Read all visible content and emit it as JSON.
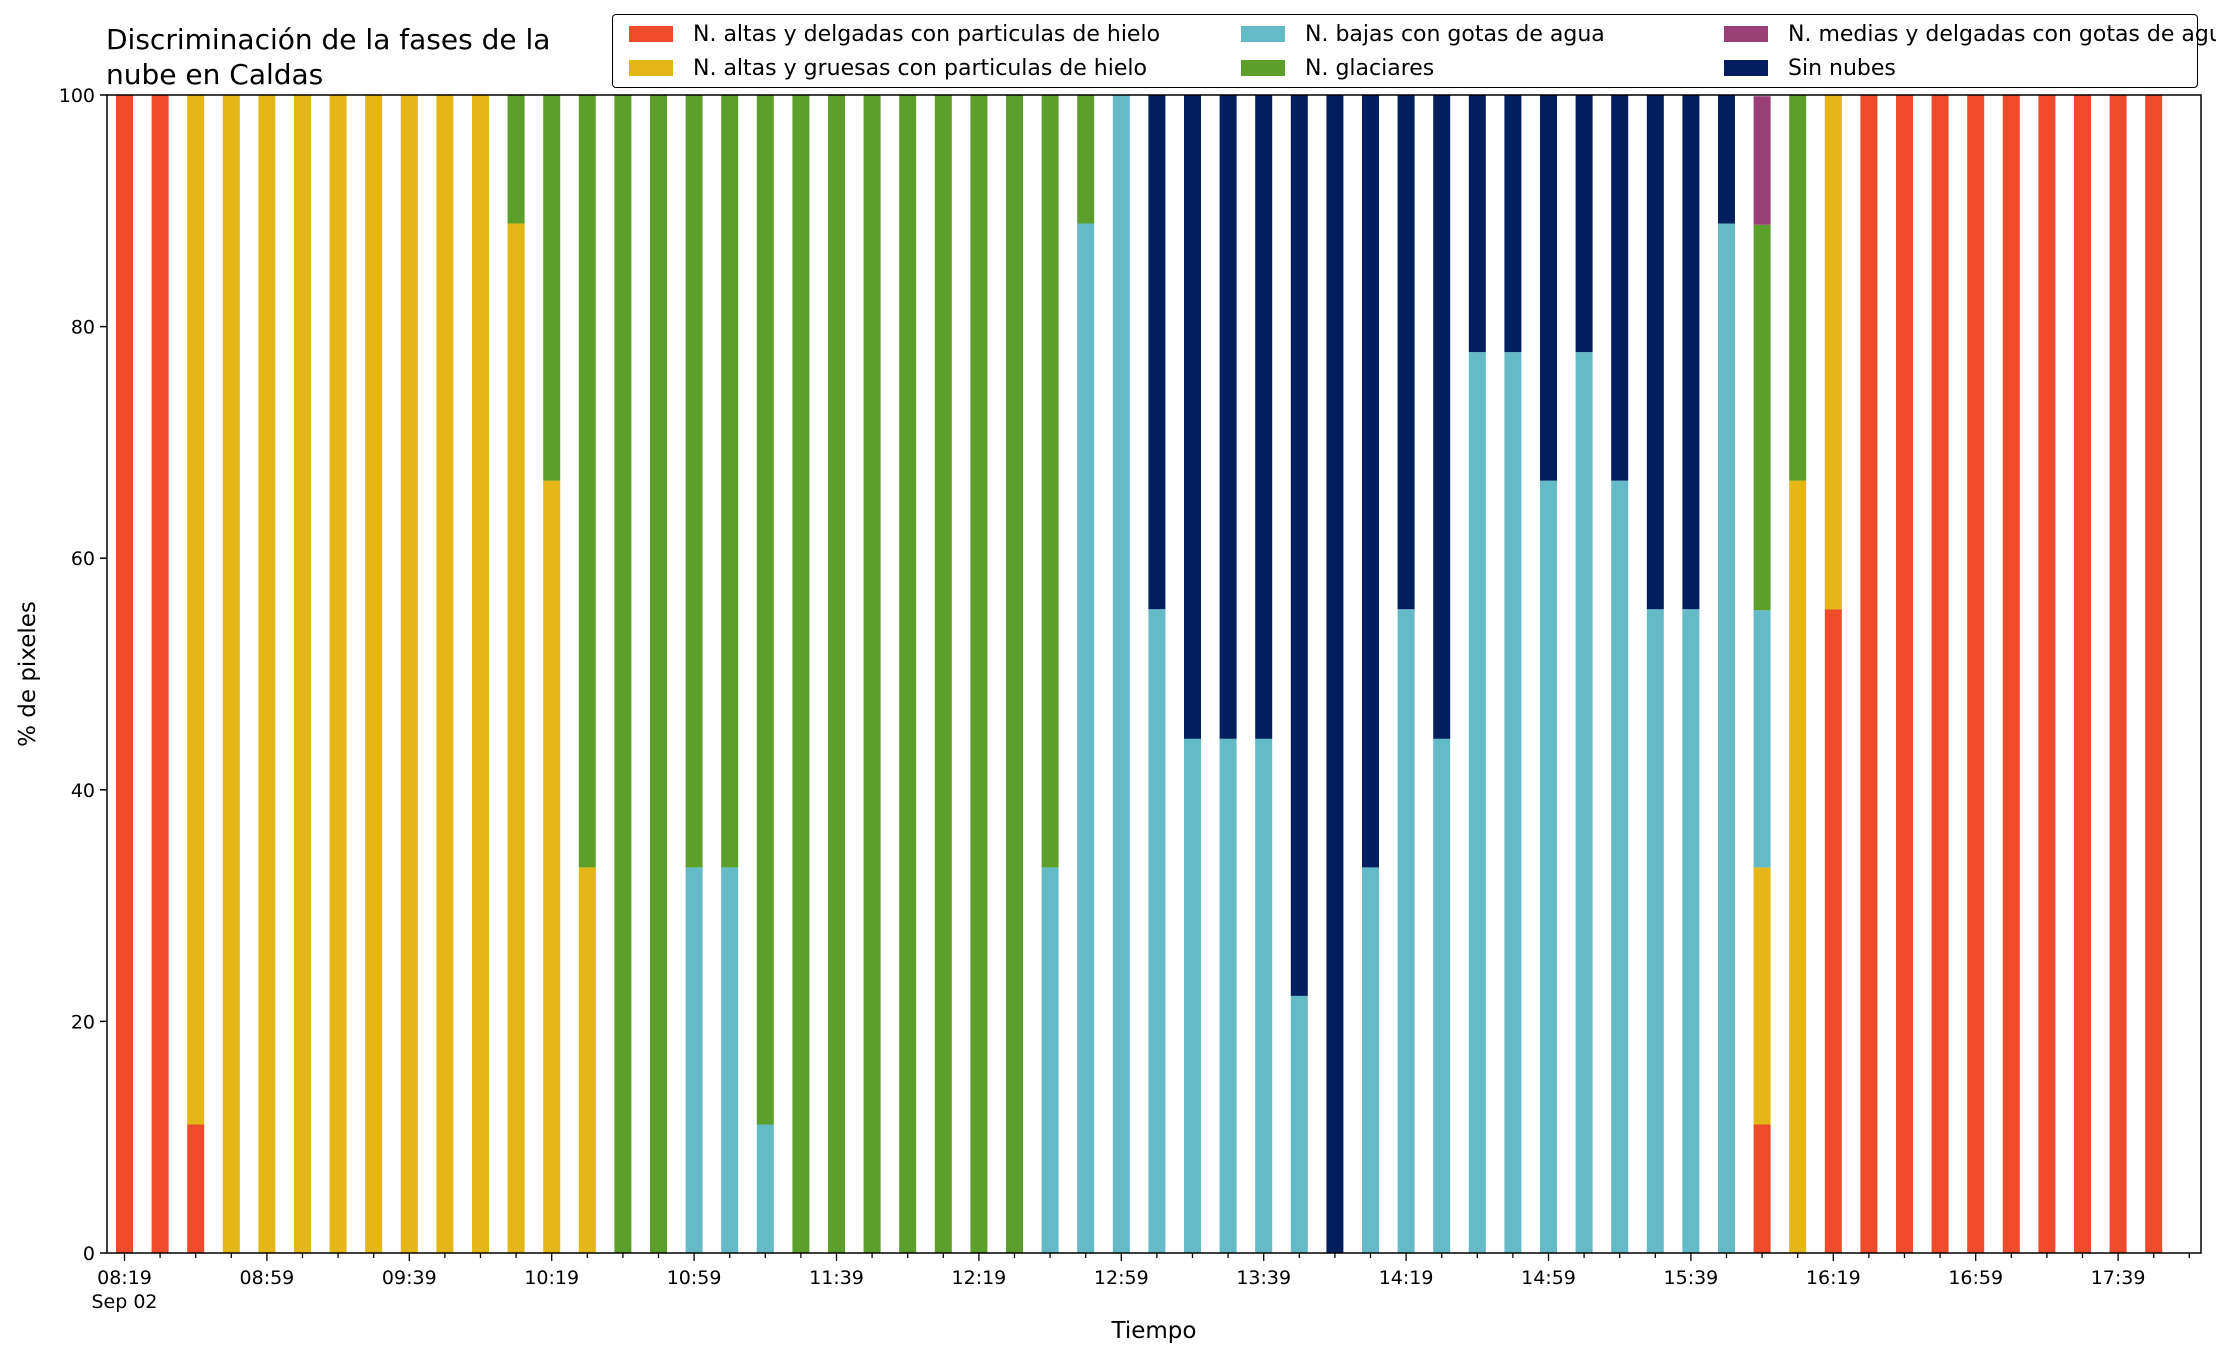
{
  "chart_data": {
    "type": "bar",
    "stacked": true,
    "title": "Discriminación de la fases de la\nnube en Caldas",
    "xlabel": "Tiempo",
    "ylabel": "% de pixeles",
    "ylim": [
      0,
      100
    ],
    "yticks": [
      "0",
      "20",
      "40",
      "60",
      "80",
      "100"
    ],
    "grid": false,
    "legend_position": "top-right",
    "xtick_labels": [
      "08:19\nSep 02",
      "08:59",
      "09:39",
      "10:19",
      "10:59",
      "11:39",
      "12:19",
      "12:59",
      "13:39",
      "14:19",
      "14:59",
      "15:39",
      "16:19",
      "16:59",
      "17:39"
    ],
    "categories": [
      "08:19",
      "08:29",
      "08:39",
      "08:49",
      "08:59",
      "09:09",
      "09:19",
      "09:29",
      "09:39",
      "09:49",
      "09:59",
      "10:09",
      "10:19",
      "10:29",
      "10:39",
      "10:49",
      "10:59",
      "11:09",
      "11:19",
      "11:29",
      "11:39",
      "11:49",
      "11:59",
      "12:09",
      "12:19",
      "12:29",
      "12:39",
      "12:49",
      "12:59",
      "13:09",
      "13:19",
      "13:29",
      "13:39",
      "13:49",
      "13:59",
      "14:09",
      "14:19",
      "14:29",
      "14:39",
      "14:49",
      "14:59",
      "15:09",
      "15:19",
      "15:29",
      "15:39",
      "15:49",
      "15:59",
      "16:09",
      "16:19",
      "16:29",
      "16:39",
      "16:49",
      "16:59",
      "17:09",
      "17:19",
      "17:29",
      "17:39",
      "17:49"
    ],
    "series": [
      {
        "name": "N. altas y delgadas con particulas de hielo",
        "color": "#EE4B2B",
        "values": [
          100,
          100,
          11.1,
          0,
          0,
          0,
          0,
          0,
          0,
          0,
          0,
          0,
          0,
          0,
          0,
          0,
          0,
          0,
          0,
          0,
          0,
          0,
          0,
          0,
          0,
          0,
          0,
          0,
          0,
          0,
          0,
          0,
          0,
          0,
          0,
          0,
          0,
          0,
          0,
          0,
          0,
          0,
          0,
          0,
          0,
          0,
          11.1,
          0,
          55.6,
          100,
          100,
          100,
          100,
          100,
          100,
          100,
          100,
          100
        ]
      },
      {
        "name": "N. altas y gruesas con particulas de hielo",
        "color": "#E4B717",
        "values": [
          0,
          0,
          88.9,
          100,
          100,
          100,
          100,
          100,
          100,
          100,
          100,
          88.9,
          66.7,
          33.3,
          0,
          0,
          0,
          0,
          0,
          0,
          0,
          0,
          0,
          0,
          0,
          0,
          0,
          0,
          0,
          0,
          0,
          0,
          0,
          0,
          0,
          0,
          0,
          0,
          0,
          0,
          0,
          0,
          0,
          0,
          0,
          0,
          22.2,
          66.7,
          44.4,
          0,
          0,
          0,
          0,
          0,
          0,
          0,
          0,
          0
        ]
      },
      {
        "name": "N. bajas con gotas de agua",
        "color": "#64BBC7",
        "values": [
          0,
          0,
          0,
          0,
          0,
          0,
          0,
          0,
          0,
          0,
          0,
          0,
          0,
          0,
          0,
          0,
          33.3,
          33.3,
          11.1,
          0,
          0,
          0,
          0,
          0,
          0,
          0,
          33.3,
          88.9,
          100,
          55.6,
          44.4,
          44.4,
          44.4,
          22.2,
          0,
          33.3,
          55.6,
          44.4,
          77.8,
          77.8,
          66.7,
          77.8,
          66.7,
          55.6,
          55.6,
          88.9,
          22.2,
          0,
          0,
          0,
          0,
          0,
          0,
          0,
          0,
          0,
          0,
          0
        ]
      },
      {
        "name": "N. glaciares",
        "color": "#5C9F2A",
        "values": [
          0,
          0,
          0,
          0,
          0,
          0,
          0,
          0,
          0,
          0,
          0,
          11.1,
          33.3,
          66.7,
          100,
          100,
          66.7,
          66.7,
          88.9,
          100,
          100,
          100,
          100,
          100,
          100,
          100,
          66.7,
          11.1,
          0,
          0,
          0,
          0,
          0,
          0,
          0,
          0,
          0,
          0,
          0,
          0,
          0,
          0,
          0,
          0,
          0,
          0,
          33.3,
          33.3,
          0,
          0,
          0,
          0,
          0,
          0,
          0,
          0,
          0,
          0
        ]
      },
      {
        "name": "N. medias y delgadas con gotas de agua",
        "color": "#9B4077",
        "values": [
          0,
          0,
          0,
          0,
          0,
          0,
          0,
          0,
          0,
          0,
          0,
          0,
          0,
          0,
          0,
          0,
          0,
          0,
          0,
          0,
          0,
          0,
          0,
          0,
          0,
          0,
          0,
          0,
          0,
          0,
          0,
          0,
          0,
          0,
          0,
          0,
          0,
          0,
          0,
          0,
          0,
          0,
          0,
          0,
          0,
          0,
          11.1,
          0,
          0,
          0,
          0,
          0,
          0,
          0,
          0,
          0,
          0,
          0
        ]
      },
      {
        "name": "Sin nubes",
        "color": "#011F5F",
        "values": [
          0,
          0,
          0,
          0,
          0,
          0,
          0,
          0,
          0,
          0,
          0,
          0,
          0,
          0,
          0,
          0,
          0,
          0,
          0,
          0,
          0,
          0,
          0,
          0,
          0,
          0,
          0,
          0,
          0,
          44.4,
          55.6,
          55.6,
          55.6,
          77.8,
          100,
          66.7,
          44.4,
          55.6,
          22.2,
          22.2,
          33.3,
          22.2,
          33.3,
          44.4,
          44.4,
          11.1,
          0,
          0,
          0,
          0,
          0,
          0,
          0,
          0,
          0,
          0,
          0,
          0
        ]
      }
    ]
  },
  "legend_order": [
    0,
    1,
    2,
    3,
    4,
    5
  ]
}
